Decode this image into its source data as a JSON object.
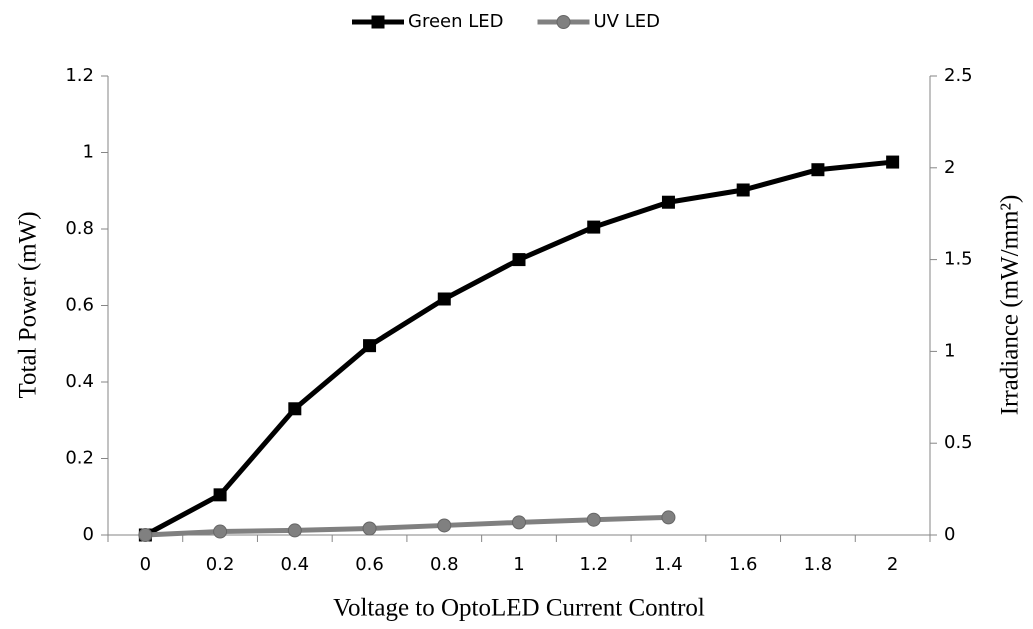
{
  "chart_data": {
    "type": "line",
    "x_label": "Voltage to OptoLED Current Control",
    "y_label": "Total Power (mW)",
    "y2_label": "Irradiance (mW/mm²)",
    "categories": [
      "0",
      "0.2",
      "0.4",
      "0.6",
      "0.8",
      "1",
      "1.2",
      "1.4",
      "1.6",
      "1.8",
      "2"
    ],
    "series": [
      {
        "name": "Green LED",
        "color": "#000000",
        "marker": "square",
        "values": [
          0,
          0.105,
          0.33,
          0.495,
          0.617,
          0.72,
          0.805,
          0.87,
          0.902,
          0.955,
          0.975
        ]
      },
      {
        "name": "UV LED",
        "color": "#808080",
        "marker": "circle",
        "values": [
          0,
          0.009,
          0.012,
          0.017,
          0.025,
          0.033,
          0.04,
          0.046,
          null,
          null,
          null
        ]
      }
    ],
    "ylim": [
      0,
      1.2
    ],
    "yticks": [
      0,
      0.2,
      0.4,
      0.6,
      0.8,
      1,
      1.2
    ],
    "y2lim": [
      0,
      2.5
    ],
    "y2ticks": [
      0,
      0.5,
      1,
      1.5,
      2,
      2.5
    ],
    "legend": "top",
    "grid": false
  }
}
